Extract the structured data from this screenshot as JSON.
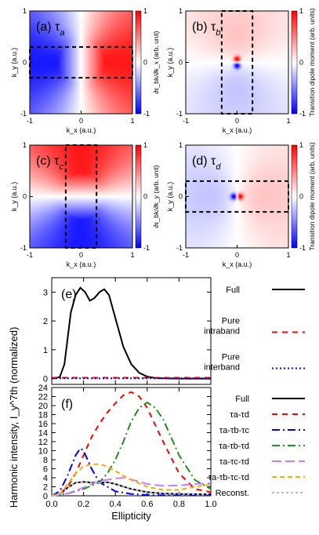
{
  "colors": {
    "red": "#ff0000",
    "blue": "#0000ff",
    "green": "#1f8f1f",
    "purple": "#c77dff",
    "orange": "#ffa500",
    "gray": "#bbbbbb",
    "black": "#000000"
  },
  "maps": [
    {
      "id": "a",
      "label": "(a) τ",
      "sub": "a",
      "ylabel": "k_y (a.u.)",
      "xlabel": "k_x (a.u.)",
      "cbar": "∂ε_bk/∂k_x (arb. unit)",
      "type": "kx-gradient",
      "box": {
        "x": [
          -1,
          1
        ],
        "y": [
          -0.3,
          0.3
        ]
      }
    },
    {
      "id": "b",
      "label": "(b) τ",
      "sub": "b",
      "ylabel": "k_y (a.u.)",
      "xlabel": "k_x (a.u.)",
      "cbar": "Transition dipole moment (arb. units)",
      "type": "dipole-y",
      "box": {
        "x": [
          -0.3,
          0.3
        ],
        "y": [
          -1,
          1
        ]
      }
    },
    {
      "id": "c",
      "label": "(c) τ",
      "sub": "c",
      "ylabel": "k_y (a.u.)",
      "xlabel": "k_x (a.u.)",
      "cbar": "∂ε_bk/∂k_y (arb. unit)",
      "type": "ky-gradient",
      "box": {
        "x": [
          -0.3,
          0.3
        ],
        "y": [
          -1,
          1
        ]
      }
    },
    {
      "id": "d",
      "label": "(d) τ",
      "sub": "d",
      "ylabel": "k_y (a.u.)",
      "xlabel": "k_x (a.u.)",
      "cbar": "Transition dipole moment (arb. units)",
      "type": "dipole-x",
      "box": {
        "x": [
          -1,
          1
        ],
        "y": [
          -0.3,
          0.3
        ]
      }
    }
  ],
  "map_ticks": {
    "x": [
      "-1",
      "0",
      "1"
    ],
    "y": [
      "-1",
      "0",
      "1"
    ],
    "cbar": [
      "1",
      "0",
      "-1"
    ]
  },
  "shared_ylabel": "Harmonic intensity, I_y^7th (normalized)",
  "chart_data": [
    {
      "type": "line",
      "panel": "(e)",
      "xlim": [
        0,
        1
      ],
      "ylim": [
        -0.2,
        3.5
      ],
      "yticks": [
        0,
        1,
        2,
        3
      ],
      "series": [
        {
          "name": "Full",
          "color": "#000000",
          "dash": "",
          "x": [
            0,
            0.05,
            0.08,
            0.12,
            0.15,
            0.18,
            0.21,
            0.24,
            0.27,
            0.3,
            0.33,
            0.36,
            0.4,
            0.45,
            0.5,
            0.55,
            0.6,
            0.65,
            0.7,
            0.8,
            0.9,
            1.0
          ],
          "y": [
            0,
            0.05,
            0.5,
            2.3,
            2.9,
            3.15,
            3.0,
            2.7,
            2.8,
            3.0,
            3.1,
            2.9,
            2.1,
            1.1,
            0.5,
            0.2,
            0.07,
            0.02,
            0.01,
            0,
            0,
            0
          ]
        },
        {
          "name": "Pure intraband",
          "color": "#ff0000",
          "dash": "7,6",
          "x": [
            0,
            0.5,
            1
          ],
          "y": [
            0.03,
            0.03,
            0.03
          ]
        },
        {
          "name": "Pure interband",
          "color": "#0000ff",
          "dash": "2,3",
          "x": [
            0,
            0.5,
            1
          ],
          "y": [
            0.01,
            0.01,
            0.01
          ]
        }
      ]
    },
    {
      "type": "line",
      "panel": "(f)",
      "xlim": [
        0,
        1
      ],
      "ylim": [
        0,
        24
      ],
      "xticks": [
        "0.0",
        "0.2",
        "0.4",
        "0.6",
        "0.8",
        "1.0"
      ],
      "yticks": [
        0,
        2,
        4,
        6,
        8,
        10,
        12,
        14,
        16,
        18,
        20,
        22,
        24
      ],
      "xlabel": "Ellipticity",
      "series": [
        {
          "name": "Full",
          "color": "#000000",
          "dash": "",
          "x": [
            0,
            0.05,
            0.1,
            0.15,
            0.2,
            0.25,
            0.3,
            0.35,
            0.4,
            0.5,
            0.6,
            0.7,
            0.8,
            0.9,
            1.0
          ],
          "y": [
            0,
            0.3,
            1.8,
            2.9,
            3.1,
            2.9,
            2.9,
            3.0,
            2.6,
            1.5,
            0.8,
            0.5,
            0.4,
            0.35,
            0.35
          ]
        },
        {
          "name": "τa-τd",
          "color": "#ff0000",
          "dash": "7,6",
          "x": [
            0,
            0.05,
            0.1,
            0.15,
            0.2,
            0.25,
            0.3,
            0.35,
            0.4,
            0.45,
            0.5,
            0.55,
            0.6,
            0.7,
            0.8,
            0.9,
            1.0
          ],
          "y": [
            0,
            0.5,
            2,
            5,
            9,
            13,
            16,
            18.5,
            20.5,
            22.3,
            23,
            22,
            19.5,
            12,
            5,
            1.5,
            0.8
          ]
        },
        {
          "name": "τa-τb-τc",
          "color": "#0000ff",
          "dash": "10,4,2,4",
          "x": [
            0,
            0.05,
            0.1,
            0.15,
            0.18,
            0.2,
            0.25,
            0.3,
            0.4,
            0.5,
            0.6,
            0.7,
            0.8,
            0.9,
            1.0
          ],
          "y": [
            0,
            1,
            4.5,
            9,
            10.5,
            10,
            6,
            3,
            1,
            0.4,
            0.2,
            0.1,
            0.1,
            0.1,
            0.1
          ]
        },
        {
          "name": "τa-τb-τd",
          "color": "#1f8f1f",
          "dash": "10,4,2,4",
          "x": [
            0,
            0.1,
            0.2,
            0.3,
            0.35,
            0.4,
            0.45,
            0.5,
            0.55,
            0.6,
            0.65,
            0.7,
            0.8,
            0.9,
            1.0
          ],
          "y": [
            0,
            0.5,
            1.5,
            3,
            5,
            8,
            12,
            16.5,
            19.5,
            20.7,
            19.5,
            17,
            9,
            3.5,
            1.5
          ]
        },
        {
          "name": "τa-τc-τd",
          "color": "#c77dff",
          "dash": "12,5",
          "x": [
            0,
            0.1,
            0.2,
            0.3,
            0.4,
            0.45,
            0.5,
            0.6,
            0.7,
            0.8,
            0.9,
            1.0
          ],
          "y": [
            0,
            0.5,
            1.8,
            3.3,
            3.8,
            4,
            3.6,
            2.6,
            2.2,
            2.3,
            2.6,
            2.8
          ]
        },
        {
          "name": "τa-τb-τc-τd",
          "color": "#ffa500",
          "dash": "6,4",
          "x": [
            0,
            0.05,
            0.1,
            0.15,
            0.2,
            0.25,
            0.3,
            0.35,
            0.4,
            0.5,
            0.6,
            0.7,
            0.8,
            0.9,
            1.0
          ],
          "y": [
            0,
            0.5,
            2.5,
            5,
            6.5,
            7,
            7,
            6.5,
            5.5,
            3.5,
            2,
            1.3,
            1.3,
            2,
            2.5
          ]
        },
        {
          "name": "Reconst.",
          "color": "#bbbbbb",
          "dash": "3,3",
          "x": [
            0,
            0.05,
            0.1,
            0.15,
            0.2,
            0.25,
            0.3,
            0.35,
            0.4,
            0.5,
            0.6,
            0.7,
            0.8,
            0.9,
            1.0
          ],
          "y": [
            0,
            0.3,
            1.8,
            2.9,
            3.1,
            2.9,
            2.9,
            3.0,
            2.6,
            1.5,
            0.8,
            0.5,
            0.4,
            0.35,
            0.35
          ]
        }
      ]
    }
  ]
}
